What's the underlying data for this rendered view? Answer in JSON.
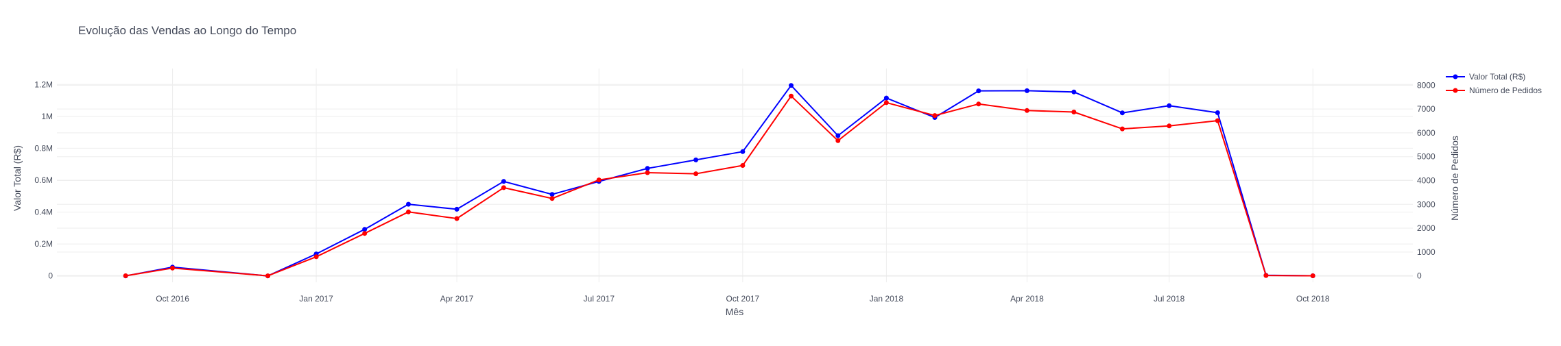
{
  "chart_data": {
    "type": "line",
    "title": "Evolução das Vendas ao Longo do Tempo",
    "xlabel": "Mês",
    "ylabel": "Valor Total (R$)",
    "y2label": "Número de Pedidos",
    "x": [
      "2016-09",
      "2016-10",
      "2016-12",
      "2017-01",
      "2017-02",
      "2017-03",
      "2017-04",
      "2017-05",
      "2017-06",
      "2017-07",
      "2017-08",
      "2017-09",
      "2017-10",
      "2017-11",
      "2017-12",
      "2018-01",
      "2018-02",
      "2018-03",
      "2018-04",
      "2018-05",
      "2018-06",
      "2018-07",
      "2018-08",
      "2018-09",
      "2018-10"
    ],
    "xtick_values": [
      "2016-10",
      "2017-01",
      "2017-04",
      "2017-07",
      "2017-10",
      "2018-01",
      "2018-04",
      "2018-07",
      "2018-10"
    ],
    "xtick_labels": [
      "Oct 2016",
      "Jan 2017",
      "Apr 2017",
      "Jul 2017",
      "Oct 2017",
      "Jan 2018",
      "Apr 2018",
      "Jul 2018",
      "Oct 2018"
    ],
    "xlim": [
      "2016-07-19",
      "2018-12-04"
    ],
    "ylim": [
      -40000,
      1300000
    ],
    "yticks": [
      0,
      200000,
      400000,
      600000,
      800000,
      1000000,
      1200000
    ],
    "ytick_labels": [
      "0",
      "0.2M",
      "0.4M",
      "0.6M",
      "0.8M",
      "1M",
      "1.2M"
    ],
    "y2lim": [
      -270,
      8700
    ],
    "y2ticks": [
      0,
      1000,
      2000,
      3000,
      4000,
      5000,
      6000,
      7000,
      8000
    ],
    "y2tick_labels": [
      "0",
      "1000",
      "2000",
      "3000",
      "4000",
      "5000",
      "6000",
      "7000",
      "8000"
    ],
    "grid": true,
    "legend_position": "top-right",
    "series": [
      {
        "name": "Valor Total (R$)",
        "axis": "left",
        "color": "#0000ff",
        "values": [
          0,
          55000,
          0,
          138000,
          292000,
          449000,
          418000,
          592000,
          511000,
          592000,
          674000,
          727000,
          779000,
          1194000,
          879000,
          1115000,
          993000,
          1160000,
          1161000,
          1153000,
          1022000,
          1067000,
          1023000,
          4000,
          600
        ]
      },
      {
        "name": "Número de Pedidos",
        "axis": "right",
        "color": "#ff0000",
        "values": [
          4,
          324,
          1,
          800,
          1780,
          2682,
          2404,
          3700,
          3245,
          4026,
          4331,
          4285,
          4631,
          7544,
          5673,
          7269,
          6728,
          7211,
          6939,
          6873,
          6167,
          6292,
          6512,
          16,
          4
        ]
      }
    ]
  }
}
